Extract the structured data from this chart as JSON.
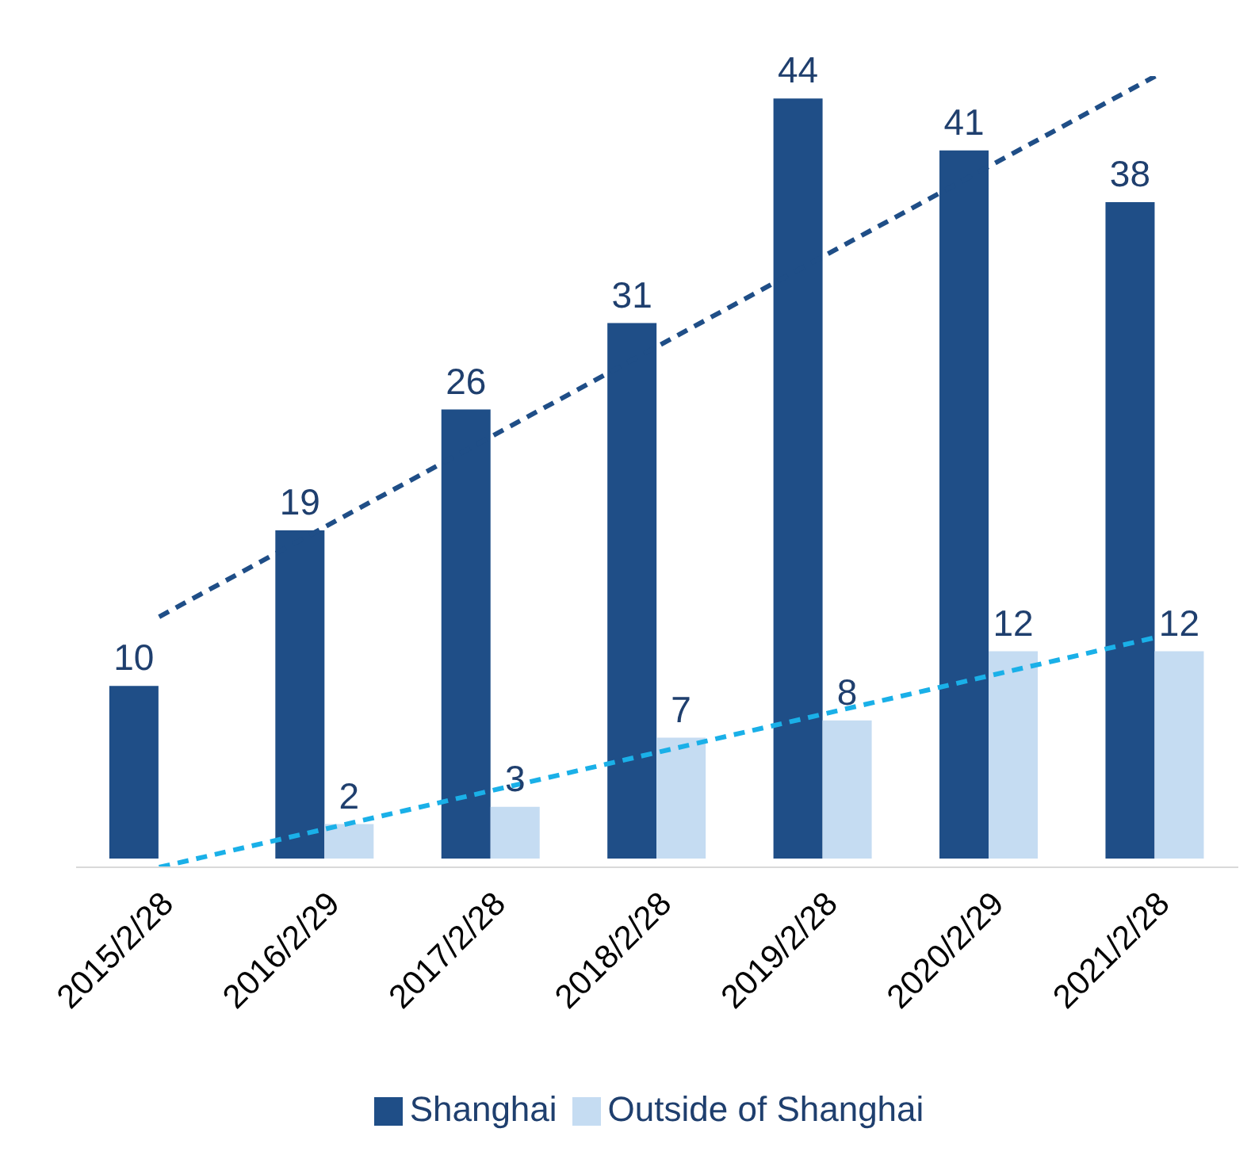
{
  "chart_data": {
    "type": "bar",
    "categories": [
      "2015/2/28",
      "2016/2/29",
      "2017/2/28",
      "2018/2/28",
      "2019/2/28",
      "2020/2/29",
      "2021/2/28"
    ],
    "series": [
      {
        "name": "Shanghai",
        "color": "#1f4e87",
        "values": [
          10,
          19,
          26,
          31,
          44,
          41,
          38
        ],
        "value_labels": [
          "10",
          "19",
          "26",
          "31",
          "44",
          "41",
          "38"
        ]
      },
      {
        "name": "Outside of Shanghai",
        "color": "#c5dcf2",
        "values": [
          null,
          2,
          3,
          7,
          8,
          12,
          12
        ],
        "value_labels": [
          null,
          "2",
          "3",
          "7",
          "8",
          "12",
          "12"
        ]
      },
      {
        "type": "line",
        "color": "#1f4e87",
        "line_style": "dashed",
        "x": [
          "2015/2/28",
          "2021/2/28"
        ],
        "values": [
          14,
          45.3
        ]
      },
      {
        "type": "line",
        "color": "#1ab0e8",
        "line_style": "dashed",
        "x": [
          "2015/2/28",
          "2021/2/28"
        ],
        "values": [
          -0.5,
          12.8
        ]
      }
    ],
    "tick_labels": "x",
    "legend": "bottom",
    "marker": "none"
  }
}
